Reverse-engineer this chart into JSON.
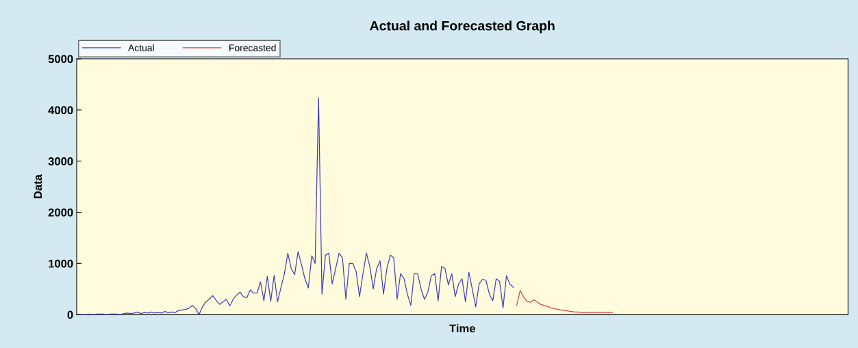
{
  "chart_data": {
    "type": "line",
    "title": "Actual and Forecasted Graph",
    "xlabel": "Time",
    "ylabel": "Data",
    "categories": [
      null,
      null,
      null,
      null,
      null,
      null,
      null,
      null,
      null,
      null,
      null,
      null,
      null,
      null,
      null,
      null,
      null,
      null,
      null,
      null,
      null,
      null,
      null,
      null,
      null,
      null,
      null,
      null,
      null,
      null,
      null,
      null,
      null,
      null,
      null,
      null,
      null,
      null,
      null,
      null,
      null,
      null,
      null,
      null,
      null,
      null,
      null,
      null,
      null,
      null,
      null,
      null,
      null,
      null,
      null,
      null,
      null,
      null,
      null,
      null,
      null,
      null,
      null,
      null,
      null,
      null,
      null,
      null,
      null,
      null,
      null,
      null,
      null,
      null,
      null,
      null,
      null,
      null,
      null,
      null,
      null,
      null,
      null,
      null,
      null,
      null,
      null,
      null,
      null,
      null,
      null,
      null,
      null,
      null,
      null,
      null,
      null,
      null,
      null,
      null,
      null,
      null,
      null,
      null,
      null,
      null,
      null,
      null,
      null,
      null,
      null,
      null,
      null,
      null,
      null,
      null,
      null,
      null,
      null,
      null,
      null,
      null,
      null,
      null,
      null,
      null,
      null,
      null,
      null,
      null,
      null,
      null,
      null,
      null,
      null,
      null,
      null,
      null,
      null,
      null,
      null,
      null,
      null,
      null,
      null,
      null,
      null,
      null,
      null,
      null,
      null,
      null,
      null,
      null,
      null,
      null,
      null,
      null,
      null,
      null,
      null,
      null,
      null,
      null,
      null,
      null,
      null,
      null,
      null,
      null,
      null,
      null,
      null,
      null,
      null,
      null,
      null,
      null,
      null,
      null,
      null,
      null,
      null,
      null,
      null,
      null,
      null,
      null,
      null,
      null,
      null,
      null,
      null,
      null,
      null,
      null,
      null,
      null,
      null,
      null,
      null,
      null,
      null,
      null,
      null,
      null,
      null,
      null,
      null,
      null,
      null,
      null,
      null,
      null,
      null,
      null,
      null,
      null,
      null,
      null,
      null,
      null,
      null,
      null,
      null,
      null
    ],
    "series": [
      {
        "name": "Actual",
        "color": "#4040c0",
        "values": [
          0,
          0,
          0,
          10,
          0,
          10,
          10,
          10,
          0,
          10,
          10,
          10,
          0,
          20,
          30,
          20,
          30,
          50,
          20,
          40,
          30,
          50,
          30,
          40,
          30,
          60,
          40,
          50,
          40,
          80,
          90,
          100,
          120,
          180,
          120,
          0,
          150,
          250,
          300,
          370,
          280,
          200,
          250,
          300,
          170,
          300,
          380,
          440,
          350,
          330,
          480,
          420,
          420,
          640,
          270,
          750,
          260,
          770,
          250,
          530,
          800,
          1200,
          900,
          780,
          1230,
          980,
          700,
          520,
          1150,
          1000,
          4240,
          400,
          1160,
          1200,
          600,
          900,
          1200,
          1110,
          300,
          1000,
          1000,
          840,
          350,
          800,
          1200,
          950,
          500,
          900,
          1050,
          400,
          900,
          1160,
          1110,
          300,
          800,
          710,
          400,
          180,
          800,
          800,
          500,
          300,
          440,
          760,
          800,
          270,
          940,
          900,
          580,
          800,
          350,
          600,
          700,
          250,
          830,
          500,
          150,
          600,
          690,
          670,
          400,
          270,
          700,
          650,
          130,
          760,
          600,
          530,
          null,
          null,
          null,
          null,
          null,
          null,
          null,
          null,
          null,
          null,
          null,
          null,
          null,
          null,
          null,
          null,
          null,
          null,
          null,
          null,
          null,
          null,
          null,
          null,
          null,
          null,
          null,
          null,
          null,
          null,
          null,
          null,
          null,
          null,
          null,
          null,
          null,
          null,
          null,
          null,
          null,
          null,
          null,
          null,
          null,
          null,
          null,
          null,
          null,
          null,
          null,
          null,
          null,
          null,
          null,
          null,
          null,
          null,
          null,
          null,
          null,
          null,
          null,
          null,
          null,
          null,
          null,
          null,
          null,
          null,
          null,
          null,
          null,
          null,
          null,
          null,
          null,
          null,
          null,
          null,
          null,
          null,
          null,
          null,
          null,
          null,
          null,
          null,
          null,
          null,
          null,
          null,
          null,
          null,
          null,
          null,
          null,
          null
        ]
      },
      {
        "name": "Forecasted",
        "color": "#e04040",
        "values": [
          null,
          null,
          null,
          null,
          null,
          null,
          null,
          null,
          null,
          null,
          null,
          null,
          null,
          null,
          null,
          null,
          null,
          null,
          null,
          null,
          null,
          null,
          null,
          null,
          null,
          null,
          null,
          null,
          null,
          null,
          null,
          null,
          null,
          null,
          null,
          null,
          null,
          null,
          null,
          null,
          null,
          null,
          null,
          null,
          null,
          null,
          null,
          null,
          null,
          null,
          null,
          null,
          null,
          null,
          null,
          null,
          null,
          null,
          null,
          null,
          null,
          null,
          null,
          null,
          null,
          null,
          null,
          null,
          null,
          null,
          null,
          null,
          null,
          null,
          null,
          null,
          null,
          null,
          null,
          null,
          null,
          null,
          null,
          null,
          null,
          null,
          null,
          null,
          null,
          null,
          null,
          null,
          null,
          null,
          null,
          null,
          null,
          null,
          null,
          null,
          null,
          null,
          null,
          null,
          null,
          null,
          null,
          null,
          null,
          null,
          null,
          null,
          null,
          null,
          null,
          null,
          null,
          null,
          null,
          null,
          null,
          null,
          null,
          null,
          null,
          null,
          null,
          null,
          180,
          470,
          350,
          260,
          240,
          290,
          250,
          200,
          180,
          160,
          130,
          120,
          100,
          90,
          80,
          70,
          60,
          50,
          50,
          40,
          40,
          40,
          40,
          40,
          40,
          40,
          40,
          40,
          40,
          null,
          null,
          null,
          null,
          null,
          null,
          null,
          null,
          null,
          null,
          null,
          null,
          null,
          null,
          null,
          null,
          null,
          null,
          null,
          null,
          null,
          null,
          null,
          null,
          null,
          null,
          null,
          null,
          null,
          null,
          null,
          null,
          null,
          null,
          null,
          null,
          null,
          null,
          null,
          null,
          null,
          null,
          null,
          null,
          null,
          null,
          null,
          null,
          null,
          null,
          null,
          null,
          null,
          null,
          null,
          null,
          null,
          null,
          null,
          null,
          null,
          null,
          null,
          null,
          null,
          null,
          null,
          null,
          null
        ]
      }
    ],
    "ylim": [
      0,
      5000
    ],
    "yticks": [
      0,
      1000,
      2000,
      3000,
      4000,
      5000
    ],
    "tick_labels": "y",
    "legend": "top left",
    "grid": false,
    "line_style": "solid",
    "marker": "none"
  }
}
